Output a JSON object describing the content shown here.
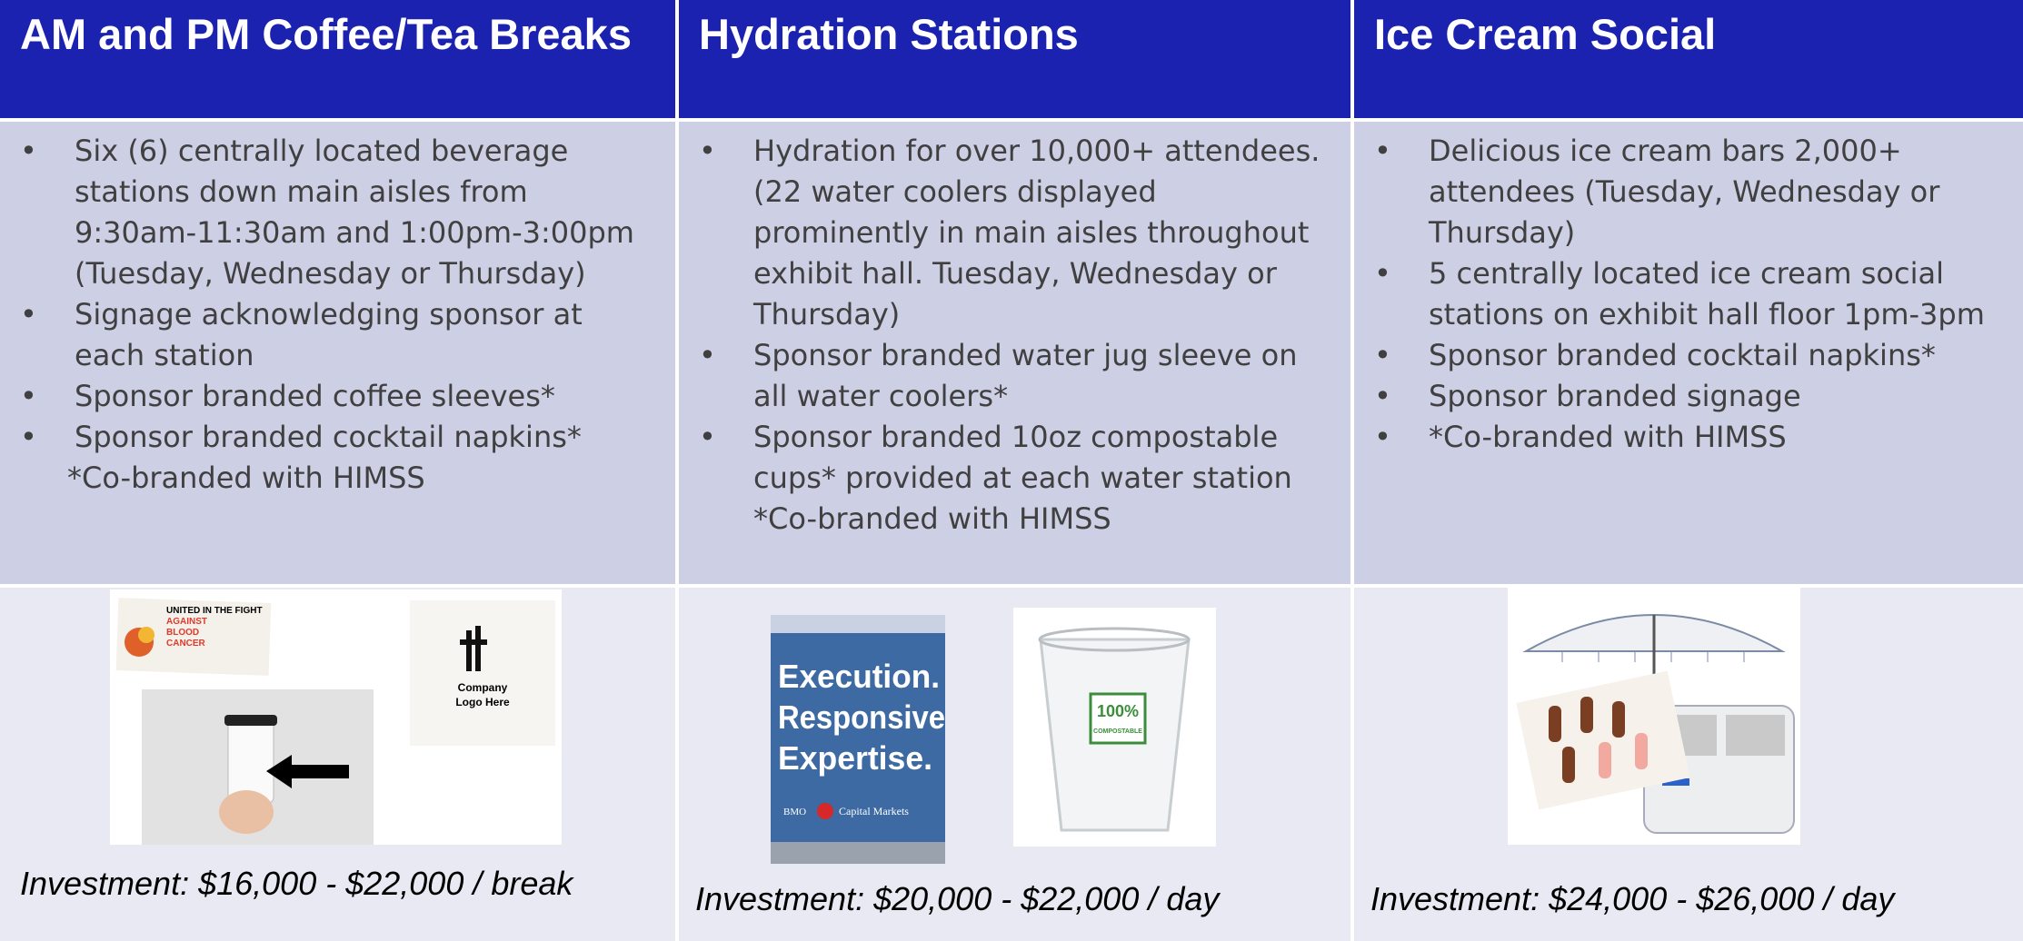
{
  "table": {
    "columns": [
      {
        "title": "AM and PM Coffee/Tea Breaks",
        "bullets": [
          "Six (6) centrally located beverage stations down main aisles from 9:30am-11:30am and 1:00pm-3:00pm (Tuesday, Wednesday or Thursday)",
          "Signage acknowledging sponsor at each station",
          "Sponsor branded coffee sleeves*",
          "Sponsor branded cocktail napkins*"
        ],
        "note": "*Co-branded with HIMSS",
        "image_texts": [
          "UNITED IN THE FIGHT",
          "AGAINST",
          "BLOOD",
          "CANCER",
          "Company",
          "Logo Here"
        ],
        "investment": "Investment: $16,000 - $22,000 / break"
      },
      {
        "title": "Hydration Stations",
        "bullets": [
          "Hydration for over 10,000+ attendees. (22 water coolers displayed prominently in main aisles throughout exhibit hall. Tuesday, Wednesday or Thursday)",
          "Sponsor branded water jug sleeve on all water coolers*",
          "Sponsor branded 10oz compostable cups* provided at each water station"
        ],
        "note": "*Co-branded with HIMSS",
        "image_texts": [
          "Execution.",
          "Responsive",
          "Expertise.",
          "BMO",
          "Capital Markets",
          "100%",
          "COMPOSTABLE"
        ],
        "investment": "Investment: $20,000 - $22,000 / day"
      },
      {
        "title": "Ice Cream Social",
        "bullets": [
          "Delicious ice cream bars 2,000+ attendees (Tuesday, Wednesday or Thursday)",
          "5 centrally located ice cream social stations on exhibit hall floor 1pm-3pm",
          "Sponsor branded cocktail napkins*",
          "Sponsor branded signage",
          "*Co-branded with HIMSS"
        ],
        "investment": "Investment: $24,000 - $26,000 / day"
      }
    ]
  }
}
